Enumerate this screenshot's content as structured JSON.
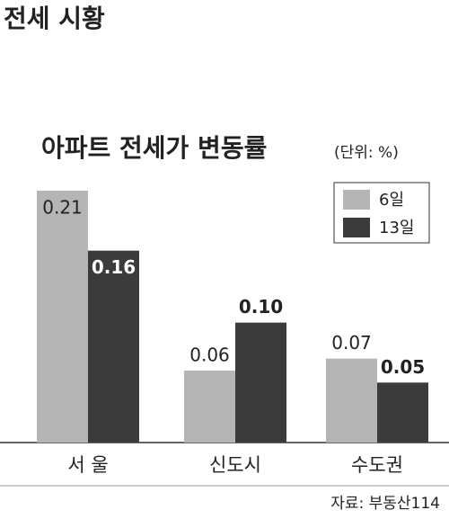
{
  "header": "전세 시황",
  "chart_data": {
    "type": "bar",
    "title": "아파트 전세가 변동률",
    "unit": "(단위: %)",
    "categories": [
      "서 울",
      "신도시",
      "수도권"
    ],
    "series": [
      {
        "name": "6일",
        "color": "#b5b5b5",
        "values": [
          0.21,
          0.06,
          0.07
        ],
        "value_labels": [
          "0.21",
          "0.06",
          "0.07"
        ]
      },
      {
        "name": "13일",
        "color": "#3b3b3b",
        "values": [
          0.16,
          0.1,
          0.05
        ],
        "value_labels": [
          "0.16",
          "0.10",
          "0.05"
        ]
      }
    ],
    "source": "자료: 부동산114"
  }
}
